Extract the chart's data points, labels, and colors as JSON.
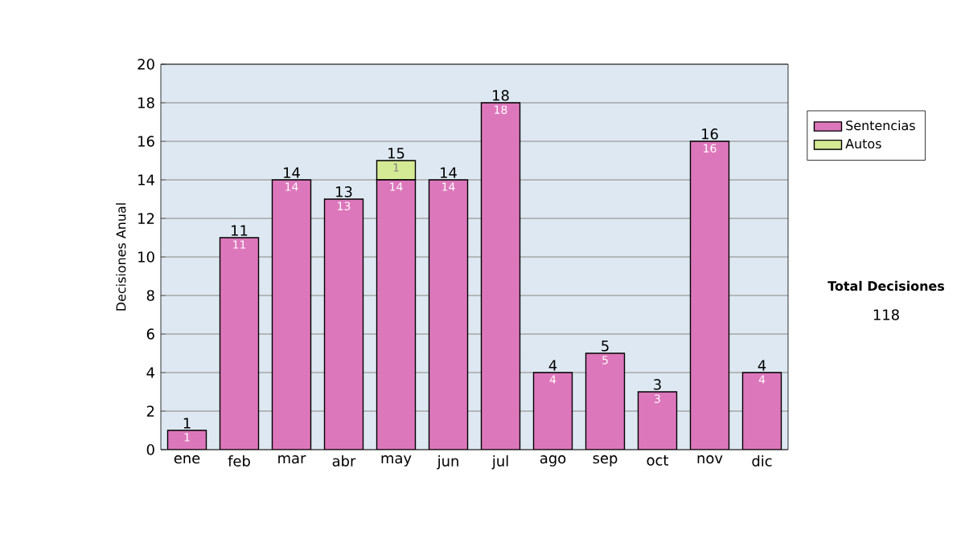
{
  "chart_data": {
    "type": "bar",
    "stacked": true,
    "ylabel": "Decisiones Anual",
    "categories": [
      "ene",
      "feb",
      "mar",
      "abr",
      "may",
      "jun",
      "jul",
      "ago",
      "sep",
      "oct",
      "nov",
      "dic"
    ],
    "series": [
      {
        "name": "Sentencias",
        "color": "#dd77bb",
        "values": [
          1,
          11,
          14,
          13,
          14,
          14,
          18,
          4,
          5,
          3,
          16,
          4
        ],
        "value_labels": [
          "1",
          "11",
          "14",
          "13",
          "14",
          "14",
          "18",
          "4",
          "5",
          "3",
          "16",
          "4"
        ]
      },
      {
        "name": "Autos",
        "color": "#d4ea94",
        "values": [
          null,
          null,
          null,
          null,
          1,
          null,
          null,
          null,
          null,
          null,
          null,
          null
        ],
        "value_labels": [
          null,
          null,
          null,
          null,
          "1",
          null,
          null,
          null,
          null,
          null,
          null,
          null
        ]
      }
    ],
    "totals": [
      "1",
      "11",
      "14",
      "13",
      "15",
      "14",
      "18",
      "4",
      "5",
      "3",
      "16",
      "4"
    ],
    "ylim": [
      0,
      20
    ],
    "yticks": [
      0,
      2,
      4,
      6,
      8,
      10,
      12,
      14,
      16,
      18,
      20
    ],
    "grid": "y",
    "legend": "right",
    "annotations": [
      "Total Decisiones",
      "118"
    ]
  }
}
